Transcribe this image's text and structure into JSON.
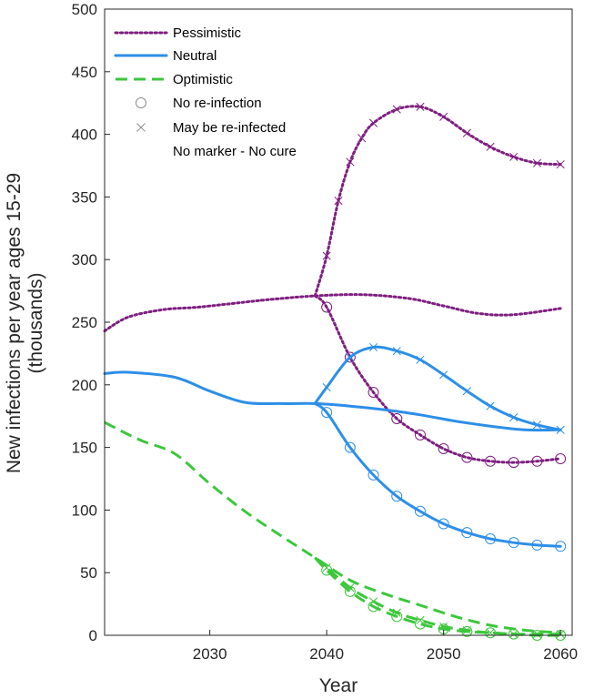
{
  "chart_data": {
    "type": "line",
    "xlabel": "Year",
    "ylabel_lines": [
      "New infections per year ages 15-29",
      "(thousands)"
    ],
    "xlim": [
      2021,
      2061
    ],
    "ylim": [
      0,
      500
    ],
    "xticks": [
      "2030",
      "2040",
      "2050",
      "2060"
    ],
    "xtick_values": [
      2030,
      2040,
      2050,
      2060
    ],
    "yticks": [
      "0",
      "50",
      "100",
      "150",
      "200",
      "250",
      "300",
      "350",
      "400",
      "450",
      "500"
    ],
    "ytick_values": [
      0,
      50,
      100,
      150,
      200,
      250,
      300,
      350,
      400,
      450,
      500
    ],
    "grid": false,
    "legend_position": "top-left",
    "legend": [
      {
        "label": "Pessimistic",
        "style": "dotted",
        "color": "#7E1E80"
      },
      {
        "label": "Neutral",
        "style": "solid",
        "color": "#2C8FE8"
      },
      {
        "label": "Optimistic",
        "style": "dashed",
        "color": "#3CC73C"
      },
      {
        "label": "No re-infection",
        "style": "marker-circle",
        "color": "#8C8C8C"
      },
      {
        "label": "May be re-infected",
        "style": "marker-x",
        "color": "#8C8C8C"
      },
      {
        "label": "No marker - No cure",
        "style": "none",
        "color": "#000000"
      }
    ],
    "series": [
      {
        "scenario": "Pessimistic",
        "variant": "No cure",
        "color": "#7E1E80",
        "dash": "dotted",
        "marker": "none",
        "x": [
          2021,
          2023,
          2026,
          2029,
          2032,
          2035,
          2039,
          2043,
          2047,
          2050,
          2053,
          2056,
          2060
        ],
        "y": [
          243,
          254,
          260,
          262,
          265,
          268,
          271,
          272,
          269,
          263,
          257,
          256,
          261
        ]
      },
      {
        "scenario": "Pessimistic",
        "variant": "May be re-infected",
        "color": "#7E1E80",
        "dash": "dotted",
        "marker": "x",
        "x": [
          2039,
          2040,
          2041,
          2042,
          2043,
          2044,
          2046,
          2048,
          2050,
          2052,
          2054,
          2056,
          2058,
          2060
        ],
        "y": [
          271,
          303,
          347,
          378,
          397,
          409,
          420,
          422,
          414,
          401,
          390,
          382,
          377,
          376
        ]
      },
      {
        "scenario": "Pessimistic",
        "variant": "No re-infection",
        "color": "#7E1E80",
        "dash": "dotted",
        "marker": "circle",
        "x": [
          2039,
          2040,
          2042,
          2044,
          2046,
          2048,
          2050,
          2052,
          2054,
          2056,
          2058,
          2060
        ],
        "y": [
          271,
          262,
          222,
          194,
          173,
          160,
          149,
          142,
          139,
          138,
          139,
          141
        ]
      },
      {
        "scenario": "Neutral",
        "variant": "No cure",
        "color": "#2C8FE8",
        "dash": "solid",
        "marker": "none",
        "x": [
          2021,
          2023,
          2027,
          2030,
          2033,
          2036,
          2039,
          2042,
          2045,
          2048,
          2051,
          2054,
          2057,
          2060
        ],
        "y": [
          209,
          210,
          206,
          195,
          186,
          185,
          185,
          183,
          180,
          176,
          171,
          167,
          164,
          164
        ]
      },
      {
        "scenario": "Neutral",
        "variant": "May be re-infected",
        "color": "#2C8FE8",
        "dash": "solid",
        "marker": "x",
        "x": [
          2039,
          2040,
          2042,
          2044,
          2046,
          2048,
          2050,
          2052,
          2054,
          2056,
          2058,
          2060
        ],
        "y": [
          185,
          198,
          222,
          230,
          227,
          220,
          208,
          195,
          183,
          174,
          168,
          164
        ]
      },
      {
        "scenario": "Neutral",
        "variant": "No re-infection",
        "color": "#2C8FE8",
        "dash": "solid",
        "marker": "circle",
        "x": [
          2039,
          2040,
          2042,
          2044,
          2046,
          2048,
          2050,
          2052,
          2054,
          2056,
          2058,
          2060
        ],
        "y": [
          185,
          178,
          150,
          128,
          111,
          99,
          89,
          82,
          77,
          74,
          72,
          71
        ]
      },
      {
        "scenario": "Optimistic",
        "variant": "No cure",
        "color": "#3CC73C",
        "dash": "dashed",
        "marker": "none",
        "x": [
          2021,
          2024,
          2027,
          2030,
          2033,
          2036,
          2039,
          2042,
          2045,
          2048,
          2051,
          2054,
          2057,
          2060
        ],
        "y": [
          170,
          156,
          145,
          121,
          99,
          80,
          62,
          44,
          33,
          24,
          15,
          8,
          4,
          2
        ]
      },
      {
        "scenario": "Optimistic",
        "variant": "May be re-infected",
        "color": "#3CC73C",
        "dash": "dashed",
        "marker": "x",
        "x": [
          2039,
          2040,
          2042,
          2044,
          2046,
          2048,
          2050,
          2052,
          2054,
          2056,
          2058,
          2060
        ],
        "y": [
          62,
          54,
          38,
          27,
          18,
          12,
          7,
          4,
          2,
          1,
          1,
          1
        ]
      },
      {
        "scenario": "Optimistic",
        "variant": "No re-infection",
        "color": "#3CC73C",
        "dash": "dashed",
        "marker": "circle",
        "x": [
          2039,
          2040,
          2042,
          2044,
          2046,
          2048,
          2050,
          2052,
          2054,
          2056,
          2058,
          2060
        ],
        "y": [
          62,
          52,
          35,
          23,
          15,
          9,
          5,
          3,
          2,
          1,
          0,
          0
        ]
      }
    ]
  }
}
